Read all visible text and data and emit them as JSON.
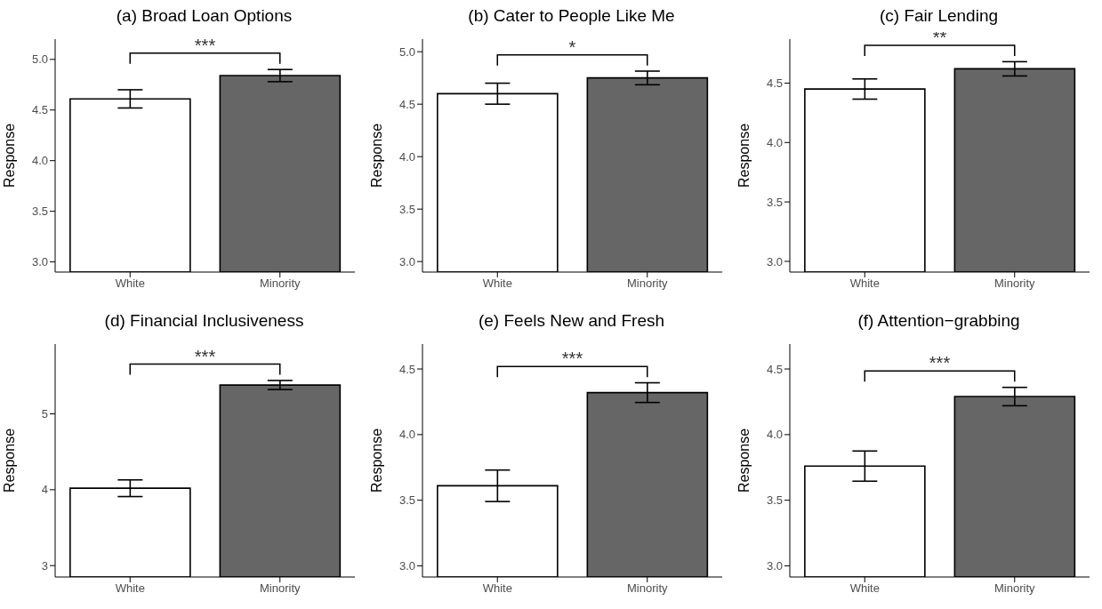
{
  "chart_data": [
    {
      "type": "bar",
      "title": "(a) Broad Loan Options",
      "ylabel": "Response",
      "categories": [
        "White",
        "Minority"
      ],
      "values": [
        4.61,
        4.84
      ],
      "colors": [
        "#ffffff",
        "#666666"
      ],
      "errors": [
        0.09,
        0.06
      ],
      "ylim": [
        2.9,
        5.2
      ],
      "yticks": [
        {
          "value": 3,
          "label": "3.0"
        },
        {
          "value": 3.5,
          "label": "3.5"
        },
        {
          "value": 4,
          "label": "4.0"
        },
        {
          "value": 4.5,
          "label": "4.5"
        },
        {
          "value": 5,
          "label": "5.0"
        }
      ],
      "annotations": [
        "***"
      ],
      "grid": false
    },
    {
      "type": "bar",
      "title": "(b) Cater to People Like Me",
      "ylabel": "Response",
      "categories": [
        "White",
        "Minority"
      ],
      "values": [
        4.6,
        4.75
      ],
      "colors": [
        "#ffffff",
        "#666666"
      ],
      "errors": [
        0.1,
        0.065
      ],
      "ylim": [
        2.9,
        5.12
      ],
      "yticks": [
        {
          "value": 3,
          "label": "3.0"
        },
        {
          "value": 3.5,
          "label": "3.5"
        },
        {
          "value": 4,
          "label": "4.0"
        },
        {
          "value": 4.5,
          "label": "4.5"
        },
        {
          "value": 5,
          "label": "5.0"
        }
      ],
      "annotations": [
        "*"
      ],
      "grid": false
    },
    {
      "type": "bar",
      "title": "(c) Fair Lending",
      "ylabel": "Response",
      "categories": [
        "White",
        "Minority"
      ],
      "values": [
        4.45,
        4.62
      ],
      "colors": [
        "#ffffff",
        "#666666"
      ],
      "errors": [
        0.085,
        0.06
      ],
      "ylim": [
        2.91,
        4.87
      ],
      "yticks": [
        {
          "value": 3,
          "label": "3.0"
        },
        {
          "value": 3.5,
          "label": "3.5"
        },
        {
          "value": 4,
          "label": "4.0"
        },
        {
          "value": 4.5,
          "label": "4.5"
        }
      ],
      "annotations": [
        "**"
      ],
      "grid": false
    },
    {
      "type": "bar",
      "title": "(d) Financial Inclusiveness",
      "ylabel": "Response",
      "categories": [
        "White",
        "Minority"
      ],
      "values": [
        4.02,
        5.38
      ],
      "colors": [
        "#ffffff",
        "#666666"
      ],
      "errors": [
        0.11,
        0.06
      ],
      "ylim": [
        2.85,
        5.92
      ],
      "yticks": [
        3,
        4,
        5
      ],
      "annotations": [
        "***"
      ],
      "grid": false
    },
    {
      "type": "bar",
      "title": "(e) Feels New and Fresh",
      "ylabel": "Response",
      "categories": [
        "White",
        "Minority"
      ],
      "values": [
        3.61,
        4.32
      ],
      "colors": [
        "#ffffff",
        "#666666"
      ],
      "errors": [
        0.12,
        0.075
      ],
      "ylim": [
        2.915,
        4.69
      ],
      "yticks": [
        {
          "value": 3,
          "label": "3.0"
        },
        {
          "value": 3.5,
          "label": "3.5"
        },
        {
          "value": 4,
          "label": "4.0"
        },
        {
          "value": 4.5,
          "label": "4.5"
        }
      ],
      "annotations": [
        "***"
      ],
      "grid": false
    },
    {
      "type": "bar",
      "title": "(f) Attention−grabbing",
      "ylabel": "Response",
      "categories": [
        "White",
        "Minority"
      ],
      "values": [
        3.76,
        4.29
      ],
      "colors": [
        "#ffffff",
        "#666666"
      ],
      "errors": [
        0.115,
        0.07
      ],
      "ylim": [
        2.915,
        4.69
      ],
      "yticks": [
        {
          "value": 3,
          "label": "3.0"
        },
        {
          "value": 3.5,
          "label": "3.5"
        },
        {
          "value": 4,
          "label": "4.0"
        },
        {
          "value": 4.5,
          "label": "4.5"
        }
      ],
      "annotations": [
        "***"
      ],
      "grid": false
    }
  ]
}
